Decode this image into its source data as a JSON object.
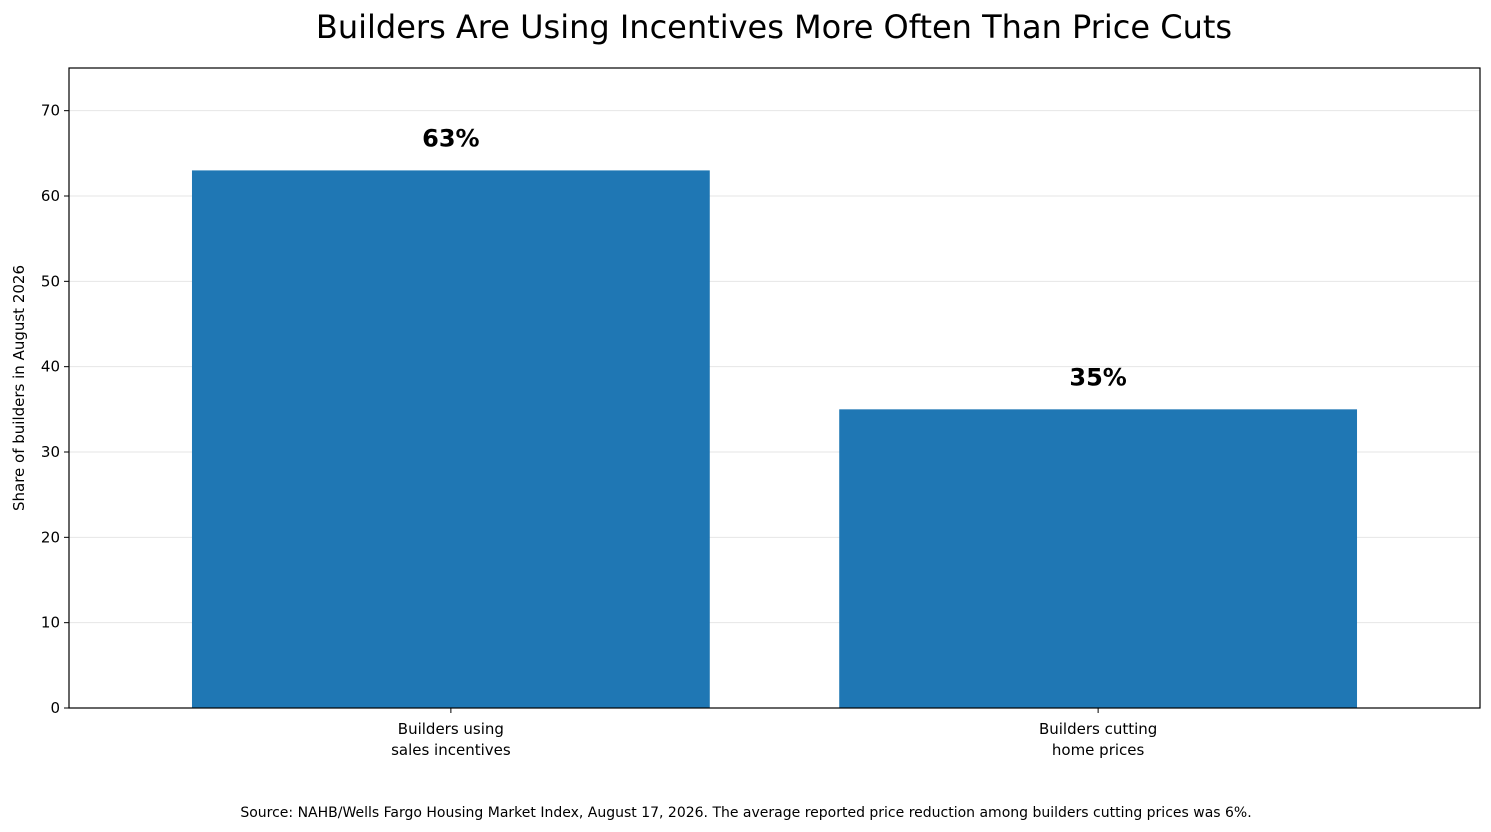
{
  "chart_data": {
    "type": "bar",
    "title": "Builders Are Using Incentives More Often Than Price Cuts",
    "xlabel": "",
    "ylabel": "Share of builders in August 2026",
    "categories": [
      [
        "Builders using",
        "sales incentives"
      ],
      [
        "Builders cutting",
        "home prices"
      ]
    ],
    "values": [
      63,
      35
    ],
    "data_labels": [
      "63%",
      "35%"
    ],
    "ylim": [
      0,
      75
    ],
    "yticks": [
      0,
      10,
      20,
      30,
      40,
      50,
      60,
      70
    ],
    "grid": "y-axis, light",
    "bar_color": "#1f77b4",
    "source_note": "Source: NAHB/Wells Fargo Housing Market Index, August 17, 2026. The average reported price reduction among builders cutting prices was 6%."
  }
}
